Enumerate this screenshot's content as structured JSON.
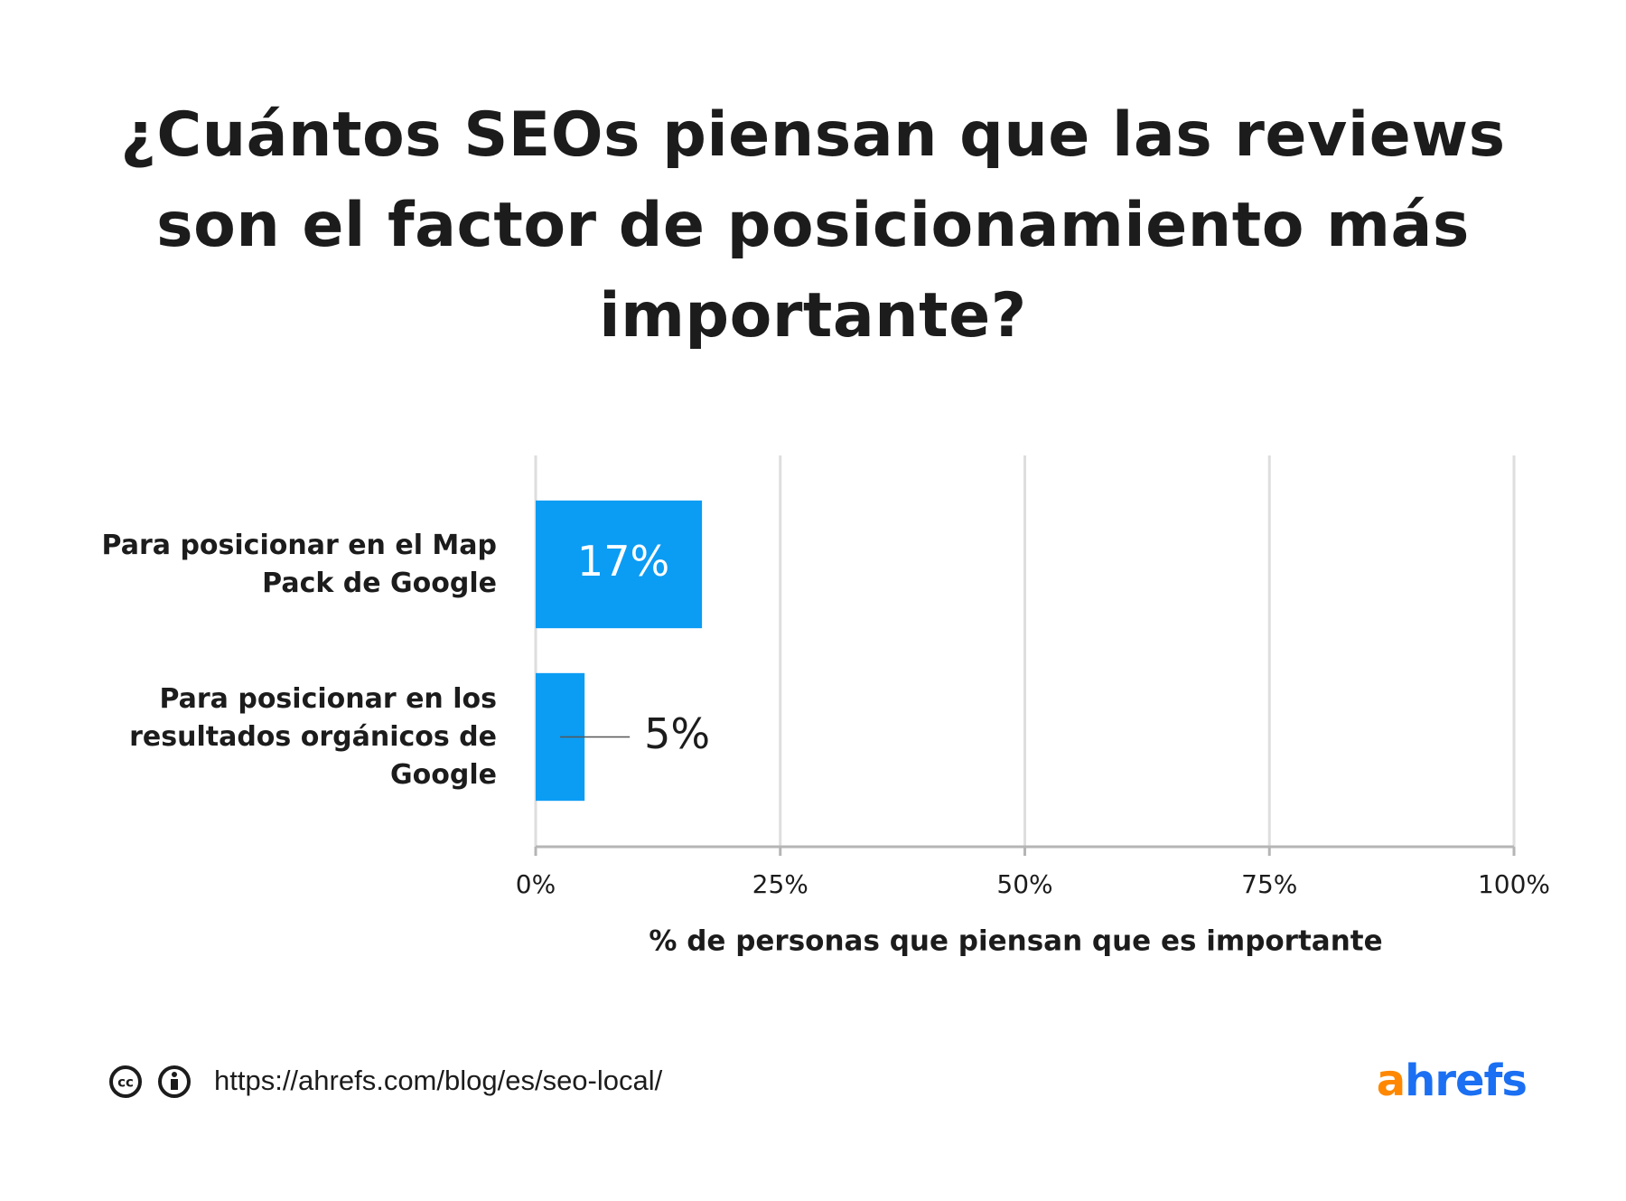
{
  "chart_data": {
    "type": "bar",
    "orientation": "horizontal",
    "title": "¿Cuántos SEOs piensan que las reviews son el factor de posicionamiento más importante?",
    "categories": [
      "Para posicionar en el Map Pack de Google",
      "Para posicionar en los resultados orgánicos de Google"
    ],
    "values": [
      17,
      5
    ],
    "value_labels": [
      "17%",
      "5%"
    ],
    "color": "#0b9cf4",
    "xlim": [
      0,
      100
    ],
    "xticks": [
      {
        "value": 0,
        "label": "0%"
      },
      {
        "value": 25,
        "label": "25%"
      },
      {
        "value": 50,
        "label": "50%"
      },
      {
        "value": 75,
        "label": "75%"
      },
      {
        "value": 100,
        "label": "100%"
      }
    ],
    "x_label": "% de personas que piensan que es importante",
    "grid": true
  },
  "footer": {
    "url": "https://ahrefs.com/blog/es/seo-local/",
    "logo": "ahrefs"
  }
}
